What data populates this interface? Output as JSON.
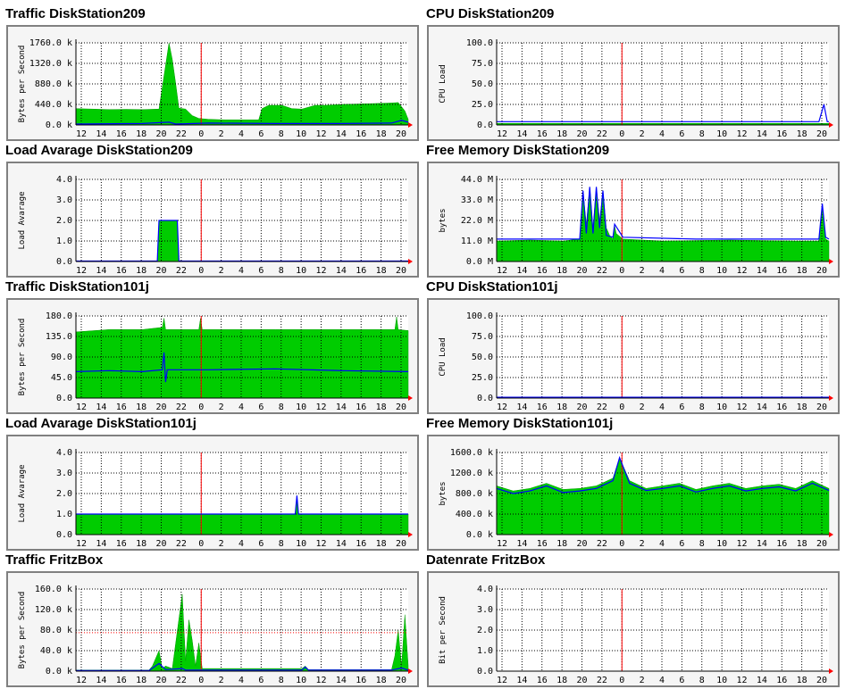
{
  "x_ticks": [
    "12",
    "14",
    "16",
    "18",
    "20",
    "22",
    "0",
    "2",
    "4",
    "6",
    "8",
    "10",
    "12",
    "14",
    "16",
    "18",
    "20"
  ],
  "colors": {
    "fill": "#00cc00",
    "fill_edge": "#009900",
    "line": "#0000ff",
    "marker": "#ff0000",
    "grid": "#000000",
    "frame": "#808080"
  },
  "panels": [
    {
      "id": "traffic-ds209",
      "title": "Traffic DiskStation209",
      "ylabel": "Bytes per Second",
      "y_ticks": [
        "1760.0 k",
        "1320.0 k",
        "880.0 k",
        "440.0 k",
        "0.0 k"
      ],
      "ymax": 1760,
      "fill": [
        [
          0,
          350
        ],
        [
          5,
          340
        ],
        [
          10,
          330
        ],
        [
          15,
          335
        ],
        [
          20,
          330
        ],
        [
          25,
          340
        ],
        [
          28,
          1760
        ],
        [
          29,
          1400
        ],
        [
          30,
          900
        ],
        [
          31,
          360
        ],
        [
          33,
          340
        ],
        [
          35,
          200
        ],
        [
          37,
          140
        ],
        [
          40,
          120
        ],
        [
          45,
          110
        ],
        [
          50,
          110
        ],
        [
          55,
          110
        ],
        [
          56,
          350
        ],
        [
          58,
          420
        ],
        [
          62,
          420
        ],
        [
          65,
          350
        ],
        [
          68,
          340
        ],
        [
          70,
          380
        ],
        [
          72,
          420
        ],
        [
          75,
          420
        ],
        [
          80,
          440
        ],
        [
          85,
          450
        ],
        [
          90,
          460
        ],
        [
          95,
          470
        ],
        [
          97,
          480
        ],
        [
          99,
          300
        ],
        [
          100,
          120
        ]
      ],
      "line": [
        [
          0,
          20
        ],
        [
          20,
          30
        ],
        [
          28,
          60
        ],
        [
          30,
          20
        ],
        [
          40,
          40
        ],
        [
          60,
          30
        ],
        [
          80,
          30
        ],
        [
          95,
          40
        ],
        [
          98,
          100
        ],
        [
          100,
          60
        ]
      ]
    },
    {
      "id": "cpu-ds209",
      "title": "CPU DiskStation209",
      "ylabel": "CPU Load",
      "y_ticks": [
        "100.0",
        "75.0",
        "50.0",
        "25.0",
        "0.0"
      ],
      "ymax": 100,
      "fill": [
        [
          0,
          2
        ],
        [
          100,
          2
        ]
      ],
      "line": [
        [
          0,
          4
        ],
        [
          20,
          4
        ],
        [
          40,
          4
        ],
        [
          60,
          4
        ],
        [
          80,
          4
        ],
        [
          97,
          4
        ],
        [
          98.5,
          25
        ],
        [
          99.5,
          4
        ],
        [
          100,
          4
        ]
      ]
    },
    {
      "id": "load-ds209",
      "title": "Load Avarage DiskStation209",
      "ylabel": "Load Avarage",
      "y_ticks": [
        "4.0",
        "3.0",
        "2.0",
        "1.0",
        "0.0"
      ],
      "ymax": 4,
      "fill": [
        [
          0,
          0
        ],
        [
          24.5,
          0
        ],
        [
          25,
          2
        ],
        [
          30.5,
          2
        ],
        [
          31,
          0
        ],
        [
          100,
          0
        ]
      ],
      "line": [
        [
          0,
          0.02
        ],
        [
          24.5,
          0.02
        ],
        [
          25,
          2
        ],
        [
          30.5,
          2
        ],
        [
          31,
          0.02
        ],
        [
          100,
          0.02
        ]
      ]
    },
    {
      "id": "mem-ds209",
      "title": "Free Memory DiskStation209",
      "ylabel": "bytes",
      "y_ticks": [
        "44.0 M",
        "33.0 M",
        "22.0 M",
        "11.0 M",
        "0.0 M"
      ],
      "ymax": 44,
      "fill": [
        [
          0,
          11
        ],
        [
          10,
          11.5
        ],
        [
          20,
          11
        ],
        [
          25,
          12
        ],
        [
          26,
          38
        ],
        [
          27,
          20
        ],
        [
          28,
          40
        ],
        [
          29,
          18
        ],
        [
          30,
          40
        ],
        [
          31,
          22
        ],
        [
          32,
          38
        ],
        [
          33,
          18
        ],
        [
          34,
          14
        ],
        [
          35,
          12
        ],
        [
          35.5,
          19
        ],
        [
          36,
          15
        ],
        [
          38,
          12
        ],
        [
          50,
          11
        ],
        [
          70,
          11.5
        ],
        [
          90,
          11
        ],
        [
          97,
          11
        ],
        [
          98,
          31
        ],
        [
          99,
          12
        ],
        [
          100,
          11
        ]
      ],
      "line": [
        [
          0,
          12
        ],
        [
          20,
          12
        ],
        [
          25,
          12
        ],
        [
          26,
          38
        ],
        [
          27,
          15
        ],
        [
          28,
          40
        ],
        [
          29,
          15
        ],
        [
          30,
          40
        ],
        [
          31,
          18
        ],
        [
          32,
          38
        ],
        [
          33,
          14
        ],
        [
          35,
          13
        ],
        [
          35.5,
          20
        ],
        [
          38,
          13
        ],
        [
          60,
          12
        ],
        [
          97,
          12
        ],
        [
          98,
          31
        ],
        [
          99,
          13
        ],
        [
          100,
          12
        ]
      ]
    },
    {
      "id": "traffic-ds101j",
      "title": "Traffic DiskStation101j",
      "ylabel": "Bytes per Second",
      "y_ticks": [
        "180.0",
        "135.0",
        "90.0",
        "45.0",
        "0.0"
      ],
      "ymax": 180,
      "fill": [
        [
          0,
          145
        ],
        [
          10,
          150
        ],
        [
          20,
          150
        ],
        [
          26,
          155
        ],
        [
          26.5,
          175
        ],
        [
          27,
          150
        ],
        [
          37,
          150
        ],
        [
          37.5,
          175
        ],
        [
          38,
          150
        ],
        [
          60,
          150
        ],
        [
          80,
          150
        ],
        [
          96,
          150
        ],
        [
          96.5,
          178
        ],
        [
          97,
          150
        ],
        [
          100,
          148
        ]
      ],
      "line": [
        [
          0,
          58
        ],
        [
          10,
          60
        ],
        [
          20,
          58
        ],
        [
          26,
          62
        ],
        [
          26.5,
          100
        ],
        [
          27,
          35
        ],
        [
          27.5,
          62
        ],
        [
          40,
          62
        ],
        [
          60,
          64
        ],
        [
          80,
          60
        ],
        [
          100,
          58
        ]
      ]
    },
    {
      "id": "cpu-ds101j",
      "title": "CPU DiskStation101j",
      "ylabel": "CPU Load",
      "y_ticks": [
        "100.0",
        "75.0",
        "50.0",
        "25.0",
        "0.0"
      ],
      "ymax": 100,
      "fill": [
        [
          0,
          1
        ],
        [
          100,
          1
        ]
      ],
      "line": [
        [
          0,
          1
        ],
        [
          100,
          1
        ]
      ]
    },
    {
      "id": "load-ds101j",
      "title": "Load Avarage DiskStation101j",
      "ylabel": "Load Avarage",
      "y_ticks": [
        "4.0",
        "3.0",
        "2.0",
        "1.0",
        "0.0"
      ],
      "ymax": 4,
      "fill": [
        [
          0,
          1
        ],
        [
          66,
          1
        ],
        [
          66.5,
          1.9
        ],
        [
          67,
          1
        ],
        [
          100,
          1
        ]
      ],
      "line": [
        [
          0,
          1
        ],
        [
          66,
          1
        ],
        [
          66.5,
          1.9
        ],
        [
          67,
          1
        ],
        [
          100,
          1
        ]
      ]
    },
    {
      "id": "mem-ds101j",
      "title": "Free Memory DiskStation101j",
      "ylabel": "bytes",
      "y_ticks": [
        "1600.0 k",
        "1200.0 k",
        "800.0 k",
        "400.0 k",
        "0.0 k"
      ],
      "ymax": 1600,
      "fill": [
        [
          0,
          950
        ],
        [
          5,
          850
        ],
        [
          10,
          900
        ],
        [
          15,
          1000
        ],
        [
          20,
          880
        ],
        [
          25,
          900
        ],
        [
          30,
          950
        ],
        [
          35,
          1100
        ],
        [
          37,
          1500
        ],
        [
          40,
          1050
        ],
        [
          45,
          900
        ],
        [
          50,
          950
        ],
        [
          55,
          1000
        ],
        [
          60,
          880
        ],
        [
          65,
          950
        ],
        [
          70,
          1000
        ],
        [
          75,
          900
        ],
        [
          80,
          950
        ],
        [
          85,
          980
        ],
        [
          90,
          900
        ],
        [
          95,
          1050
        ],
        [
          100,
          900
        ]
      ],
      "line": [
        [
          0,
          900
        ],
        [
          5,
          800
        ],
        [
          10,
          850
        ],
        [
          15,
          950
        ],
        [
          20,
          820
        ],
        [
          25,
          850
        ],
        [
          30,
          900
        ],
        [
          35,
          1050
        ],
        [
          37,
          1500
        ],
        [
          40,
          1000
        ],
        [
          45,
          860
        ],
        [
          50,
          900
        ],
        [
          55,
          950
        ],
        [
          60,
          830
        ],
        [
          65,
          900
        ],
        [
          70,
          950
        ],
        [
          75,
          850
        ],
        [
          80,
          900
        ],
        [
          85,
          930
        ],
        [
          90,
          850
        ],
        [
          95,
          1000
        ],
        [
          100,
          860
        ]
      ]
    },
    {
      "id": "traffic-fritzbox",
      "title": "Traffic FritzBox",
      "ylabel": "Bytes per Second",
      "y_ticks": [
        "160.0 k",
        "120.0 k",
        "80.0 k",
        "40.0 k",
        "0.0 k"
      ],
      "ymax": 160,
      "fill": [
        [
          0,
          2
        ],
        [
          22,
          2
        ],
        [
          23,
          10
        ],
        [
          25,
          40
        ],
        [
          26,
          5
        ],
        [
          27,
          10
        ],
        [
          29,
          5
        ],
        [
          32,
          150
        ],
        [
          33,
          20
        ],
        [
          34,
          100
        ],
        [
          35,
          60
        ],
        [
          36,
          10
        ],
        [
          37,
          55
        ],
        [
          38,
          5
        ],
        [
          68,
          5
        ],
        [
          69,
          10
        ],
        [
          70,
          3
        ],
        [
          95,
          3
        ],
        [
          96,
          30
        ],
        [
          97,
          80
        ],
        [
          98,
          10
        ],
        [
          99,
          110
        ],
        [
          100,
          10
        ]
      ],
      "line": [
        [
          0,
          1
        ],
        [
          22,
          1
        ],
        [
          25,
          15
        ],
        [
          27,
          3
        ],
        [
          32,
          5
        ],
        [
          33,
          2
        ],
        [
          68,
          2
        ],
        [
          69,
          8
        ],
        [
          70,
          2
        ],
        [
          95,
          2
        ],
        [
          98,
          6
        ],
        [
          100,
          2
        ]
      ],
      "limit": 75
    },
    {
      "id": "rate-fritzbox",
      "title": "Datenrate FritzBox",
      "ylabel": "Bit per Second",
      "y_ticks": [
        "4.0",
        "3.0",
        "2.0",
        "1.0",
        "0.0"
      ],
      "ymax": 4,
      "fill": [],
      "line": []
    }
  ]
}
